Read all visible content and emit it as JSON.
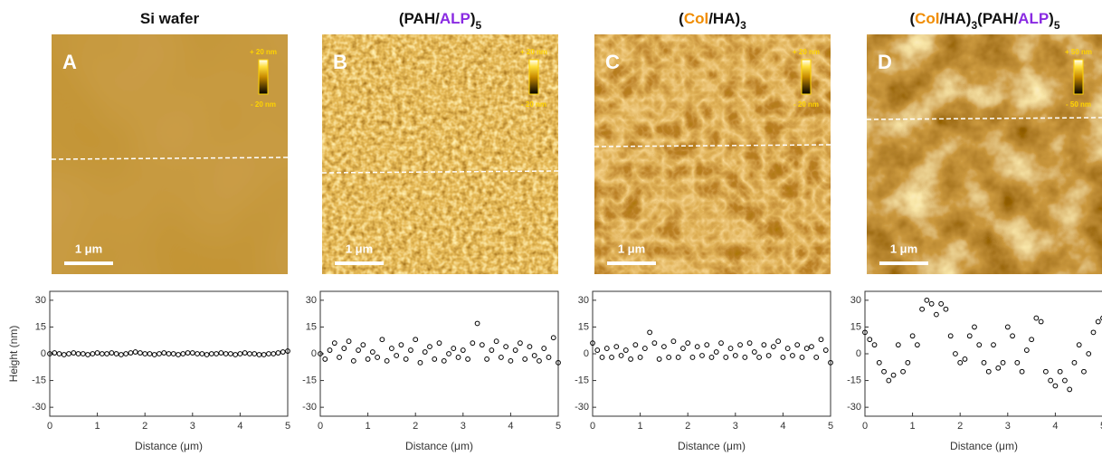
{
  "panels": [
    {
      "letter": "A",
      "title": [
        {
          "text": "Si wafer"
        }
      ],
      "scale_bar": "1 μm",
      "colorbar": [
        "+ 20 nm",
        "- 20 nm"
      ]
    },
    {
      "letter": "B",
      "title": [
        {
          "text": "(PAH/"
        },
        {
          "text": "ALP",
          "color": "#8a2be2"
        },
        {
          "text": ")"
        },
        {
          "text": "5",
          "sub": true
        }
      ],
      "scale_bar": "1 μm",
      "colorbar": [
        "+ 20 nm",
        "- 20 nm"
      ]
    },
    {
      "letter": "C",
      "title": [
        {
          "text": "("
        },
        {
          "text": "Col",
          "color": "#f08c00"
        },
        {
          "text": "/HA)"
        },
        {
          "text": "3",
          "sub": true
        }
      ],
      "scale_bar": "1 μm",
      "colorbar": [
        "+ 20 nm",
        "- 20 nm"
      ]
    },
    {
      "letter": "D",
      "title": [
        {
          "text": "("
        },
        {
          "text": "Col",
          "color": "#f08c00"
        },
        {
          "text": "/HA)"
        },
        {
          "text": "3",
          "sub": true
        },
        {
          "text": "(PAH/"
        },
        {
          "text": "ALP",
          "color": "#8a2be2"
        },
        {
          "text": ")"
        },
        {
          "text": "5",
          "sub": true
        }
      ],
      "scale_bar": "1 μm",
      "colorbar": [
        "+ 50 nm",
        "- 50 nm"
      ]
    }
  ],
  "chart_data": [
    {
      "type": "scatter",
      "ylabel": "Height (nm)",
      "xlabel": "Distance (μm)",
      "color": "#000000",
      "x": [
        0,
        0.1,
        0.2,
        0.3,
        0.4,
        0.5,
        0.6,
        0.7,
        0.8,
        0.9,
        1,
        1.1,
        1.2,
        1.3,
        1.4,
        1.5,
        1.6,
        1.7,
        1.8,
        1.9,
        2,
        2.1,
        2.2,
        2.3,
        2.4,
        2.5,
        2.6,
        2.7,
        2.8,
        2.9,
        3,
        3.1,
        3.2,
        3.3,
        3.4,
        3.5,
        3.6,
        3.7,
        3.8,
        3.9,
        4,
        4.1,
        4.2,
        4.3,
        4.4,
        4.5,
        4.6,
        4.7,
        4.8,
        4.9,
        5
      ],
      "values": [
        0,
        0.5,
        0,
        -0.5,
        0,
        0.5,
        0,
        0,
        -0.5,
        0,
        0.5,
        0,
        0,
        0.5,
        0,
        -0.5,
        0,
        0.5,
        1,
        0.5,
        0,
        0,
        -0.5,
        0,
        0.5,
        0,
        0,
        -0.5,
        0,
        0.5,
        0.5,
        0,
        0,
        -0.5,
        0,
        0,
        0.5,
        0,
        0,
        -0.5,
        0,
        0.5,
        0,
        0,
        -0.5,
        -0.5,
        0,
        0,
        0.5,
        1,
        1.5
      ],
      "xlim": [
        0,
        5
      ],
      "xticks": [
        0,
        1,
        2,
        3,
        4,
        5
      ],
      "ylim": [
        -35,
        35
      ],
      "yticks": [
        -30,
        -15,
        0,
        15,
        30
      ]
    },
    {
      "type": "scatter",
      "xlabel": "Distance (μm)",
      "color": "#000000",
      "x": [
        0,
        0.1,
        0.2,
        0.3,
        0.4,
        0.5,
        0.6,
        0.7,
        0.8,
        0.9,
        1,
        1.1,
        1.2,
        1.3,
        1.4,
        1.5,
        1.6,
        1.7,
        1.8,
        1.9,
        2,
        2.1,
        2.2,
        2.3,
        2.4,
        2.5,
        2.6,
        2.7,
        2.8,
        2.9,
        3,
        3.1,
        3.2,
        3.3,
        3.4,
        3.5,
        3.6,
        3.7,
        3.8,
        3.9,
        4,
        4.1,
        4.2,
        4.3,
        4.4,
        4.5,
        4.6,
        4.7,
        4.8,
        4.9,
        5
      ],
      "values": [
        0,
        -3,
        2,
        6,
        -2,
        3,
        7,
        -4,
        2,
        5,
        -3,
        1,
        -2,
        8,
        -4,
        3,
        -1,
        5,
        -3,
        2,
        8,
        -5,
        1,
        4,
        -3,
        6,
        -4,
        0,
        3,
        -2,
        2,
        -3,
        6,
        17,
        5,
        -3,
        2,
        7,
        -2,
        4,
        -4,
        2,
        6,
        -3,
        4,
        -1,
        -4,
        3,
        -2,
        9,
        -5
      ],
      "xlim": [
        0,
        5
      ],
      "xticks": [
        0,
        1,
        2,
        3,
        4,
        5
      ],
      "ylim": [
        -35,
        35
      ],
      "yticks": [
        -30,
        -15,
        0,
        15,
        30
      ]
    },
    {
      "type": "scatter",
      "xlabel": "Distance (μm)",
      "color": "#000000",
      "x": [
        0,
        0.1,
        0.2,
        0.3,
        0.4,
        0.5,
        0.6,
        0.7,
        0.8,
        0.9,
        1,
        1.1,
        1.2,
        1.3,
        1.4,
        1.5,
        1.6,
        1.7,
        1.8,
        1.9,
        2,
        2.1,
        2.2,
        2.3,
        2.4,
        2.5,
        2.6,
        2.7,
        2.8,
        2.9,
        3,
        3.1,
        3.2,
        3.3,
        3.4,
        3.5,
        3.6,
        3.7,
        3.8,
        3.9,
        4,
        4.1,
        4.2,
        4.3,
        4.4,
        4.5,
        4.6,
        4.7,
        4.8,
        4.9,
        5
      ],
      "values": [
        6,
        2,
        -2,
        3,
        -2,
        4,
        -1,
        2,
        -3,
        5,
        -2,
        3,
        12,
        6,
        -3,
        4,
        -2,
        7,
        -2,
        3,
        6,
        -2,
        4,
        -1,
        5,
        -2,
        1,
        6,
        -2,
        3,
        -1,
        5,
        -2,
        6,
        1,
        -2,
        5,
        -1,
        4,
        7,
        -2,
        3,
        -1,
        5,
        -2,
        3,
        4,
        -2,
        8,
        2,
        -5
      ],
      "xlim": [
        0,
        5
      ],
      "xticks": [
        0,
        1,
        2,
        3,
        4,
        5
      ],
      "ylim": [
        -35,
        35
      ],
      "yticks": [
        -30,
        -15,
        0,
        15,
        30
      ]
    },
    {
      "type": "scatter",
      "xlabel": "Distance (μm)",
      "color": "#000000",
      "x": [
        0,
        0.1,
        0.2,
        0.3,
        0.4,
        0.5,
        0.6,
        0.7,
        0.8,
        0.9,
        1,
        1.1,
        1.2,
        1.3,
        1.4,
        1.5,
        1.6,
        1.7,
        1.8,
        1.9,
        2,
        2.1,
        2.2,
        2.3,
        2.4,
        2.5,
        2.6,
        2.7,
        2.8,
        2.9,
        3,
        3.1,
        3.2,
        3.3,
        3.4,
        3.5,
        3.6,
        3.7,
        3.8,
        3.9,
        4,
        4.1,
        4.2,
        4.3,
        4.4,
        4.5,
        4.6,
        4.7,
        4.8,
        4.9,
        5
      ],
      "values": [
        12,
        8,
        5,
        -5,
        -10,
        -15,
        -12,
        5,
        -10,
        -5,
        10,
        5,
        25,
        30,
        28,
        22,
        28,
        25,
        10,
        0,
        -5,
        -3,
        10,
        15,
        5,
        -5,
        -10,
        5,
        -8,
        -5,
        15,
        10,
        -5,
        -10,
        2,
        8,
        20,
        18,
        -10,
        -15,
        -18,
        -10,
        -15,
        -20,
        -5,
        5,
        -10,
        0,
        12,
        18,
        20
      ],
      "xlim": [
        0,
        5
      ],
      "xticks": [
        0,
        1,
        2,
        3,
        4,
        5
      ],
      "ylim": [
        -35,
        35
      ],
      "yticks": [
        -30,
        -15,
        0,
        15,
        30
      ]
    }
  ]
}
